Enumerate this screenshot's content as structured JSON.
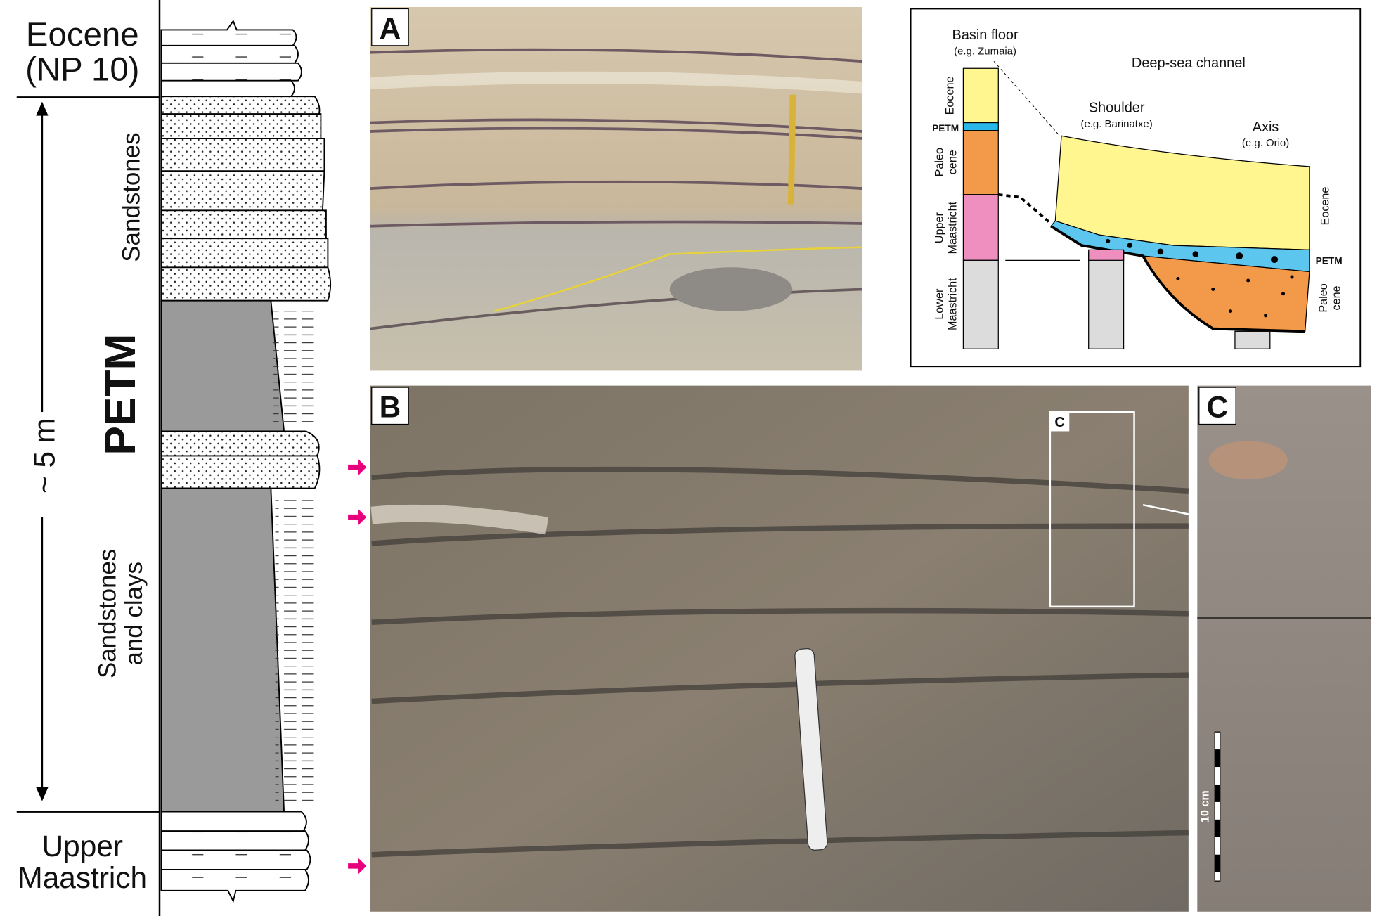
{
  "column": {
    "eocene": [
      "Eocene",
      "(NP 10)"
    ],
    "sandstones": "Sandstones",
    "petm": "PETM",
    "thickness": "~ 5 m",
    "sandstones_clays": [
      "Sandstones",
      "and clays"
    ],
    "maastrichtian": [
      "Upper",
      "Maastrich"
    ]
  },
  "panels": {
    "a": "A",
    "b": "B",
    "c": "C",
    "inset": "C",
    "scale": "10 cm"
  },
  "diagram": {
    "title": "Deep-sea channel",
    "basin_floor": "Basin floor",
    "basin_example": "(e.g. Zumaia)",
    "shoulder": "Shoulder",
    "shoulder_example": "(e.g. Barinatxe)",
    "axis": "Axis",
    "axis_example": "(e.g. Orio)",
    "left_eocene": "Eocene",
    "left_petm": "PETM",
    "left_paleocene": [
      "Paleo",
      "cene"
    ],
    "left_upper": [
      "Upper",
      "Maastricht"
    ],
    "left_lower": [
      "Lower",
      "Maastricht"
    ],
    "right_eocene": "Eocene",
    "right_petm": "PETM",
    "right_paleocene": [
      "Paleo",
      "cene"
    ]
  }
}
